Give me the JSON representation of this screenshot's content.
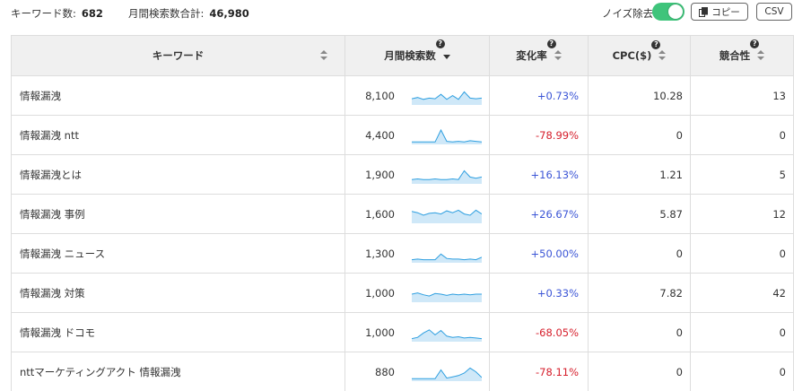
{
  "header": {
    "keyword_count_label": "キーワード数:",
    "keyword_count": "682",
    "volume_total_label": "月間検索数合計:",
    "volume_total": "46,980",
    "noise_label": "ノイズ除去",
    "noise_enabled": true,
    "copy_label": "コピー",
    "csv_label": "CSV"
  },
  "columns": {
    "keyword": "キーワード",
    "volume": "月間検索数",
    "change": "変化率",
    "cpc": "CPC($)",
    "competition": "競合性",
    "help": "?"
  },
  "colors": {
    "positive": "#3b55d6",
    "negative": "#d61f2c",
    "toggle_on": "#3fc47b",
    "sparkline": "#2e9fe0"
  },
  "rows": [
    {
      "keyword": "情報漏洩",
      "volume": "8,100",
      "change": "+0.73%",
      "direction": "pos",
      "cpc": "10.28",
      "competition": "13",
      "trend": [
        0.35,
        0.45,
        0.3,
        0.4,
        0.35,
        0.7,
        0.3,
        0.6,
        0.3,
        0.9,
        0.4,
        0.35,
        0.4
      ]
    },
    {
      "keyword": "情報漏洩 ntt",
      "volume": "4,400",
      "change": "-78.99%",
      "direction": "neg",
      "cpc": "0",
      "competition": "0",
      "trend": [
        0.05,
        0.05,
        0.05,
        0.05,
        0.05,
        1.0,
        0.1,
        0.05,
        0.1,
        0.05,
        0.15,
        0.1,
        0.05
      ]
    },
    {
      "keyword": "情報漏洩とは",
      "volume": "1,900",
      "change": "+16.13%",
      "direction": "pos",
      "cpc": "1.21",
      "competition": "5",
      "trend": [
        0.2,
        0.25,
        0.2,
        0.2,
        0.25,
        0.2,
        0.2,
        0.25,
        0.2,
        0.9,
        0.4,
        0.3,
        0.4
      ]
    },
    {
      "keyword": "情報漏洩 事例",
      "volume": "1,600",
      "change": "+26.67%",
      "direction": "pos",
      "cpc": "5.87",
      "competition": "12",
      "trend": [
        0.8,
        0.7,
        0.5,
        0.65,
        0.7,
        0.6,
        0.85,
        0.7,
        0.9,
        0.6,
        0.5,
        0.9,
        0.6
      ]
    },
    {
      "keyword": "情報漏洩 ニュース",
      "volume": "1,300",
      "change": "+50.00%",
      "direction": "pos",
      "cpc": "0",
      "competition": "0",
      "trend": [
        0.1,
        0.15,
        0.1,
        0.1,
        0.1,
        0.55,
        0.2,
        0.15,
        0.15,
        0.1,
        0.15,
        0.1,
        0.3
      ]
    },
    {
      "keyword": "情報漏洩 対策",
      "volume": "1,000",
      "change": "+0.33%",
      "direction": "pos",
      "cpc": "7.82",
      "competition": "42",
      "trend": [
        0.5,
        0.6,
        0.45,
        0.35,
        0.55,
        0.5,
        0.4,
        0.5,
        0.45,
        0.5,
        0.45,
        0.5,
        0.5
      ]
    },
    {
      "keyword": "情報漏洩 ドコモ",
      "volume": "1,000",
      "change": "-68.05%",
      "direction": "neg",
      "cpc": "0",
      "competition": "0",
      "trend": [
        0.1,
        0.2,
        0.55,
        0.8,
        0.4,
        0.75,
        0.3,
        0.2,
        0.25,
        0.15,
        0.2,
        0.15,
        0.1
      ]
    },
    {
      "keyword": "nttマーケティングアクト 情報漏洩",
      "volume": "880",
      "change": "-78.11%",
      "direction": "neg",
      "cpc": "0",
      "competition": "0",
      "trend": [
        0.05,
        0.05,
        0.05,
        0.05,
        0.05,
        0.75,
        0.1,
        0.2,
        0.3,
        0.5,
        0.9,
        0.6,
        0.15
      ]
    }
  ]
}
